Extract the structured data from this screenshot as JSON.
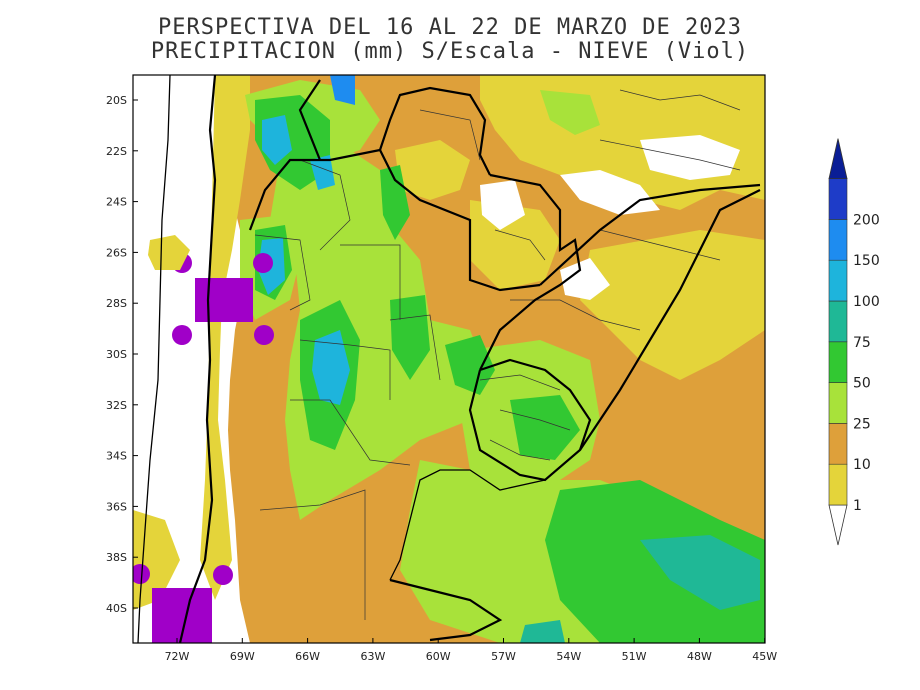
{
  "title": {
    "line1": "PERSPECTIVA DEL 16 AL 22  DE MARZO DE 2023",
    "line2": "PRECIPITACION (mm) S/Escala - NIEVE (Viol)"
  },
  "map": {
    "lat_ticks": [
      "20S",
      "22S",
      "24S",
      "26S",
      "28S",
      "30S",
      "32S",
      "34S",
      "36S",
      "38S",
      "40S"
    ],
    "lon_ticks": [
      "72W",
      "69W",
      "66W",
      "63W",
      "60W",
      "57W",
      "54W",
      "51W",
      "48W",
      "45W"
    ],
    "extent": {
      "lon_min": -74,
      "lon_max": -45,
      "lat_min": -41.5,
      "lat_max": -19
    }
  },
  "legend": {
    "levels": [
      {
        "label": "1",
        "color": "#e4d43a"
      },
      {
        "label": "10",
        "color": "#dea03a"
      },
      {
        "label": "25",
        "color": "#a8e23a"
      },
      {
        "label": "50",
        "color": "#32c832"
      },
      {
        "label": "75",
        "color": "#1fb896"
      },
      {
        "label": "100",
        "color": "#1eb4dc"
      },
      {
        "label": "150",
        "color": "#1e8cf0"
      },
      {
        "label": "200",
        "color": "#1e3cc8"
      }
    ],
    "top_color": "#0a1e96",
    "snow_color": "#a000c8",
    "no_rain_color": "#ffffff"
  }
}
